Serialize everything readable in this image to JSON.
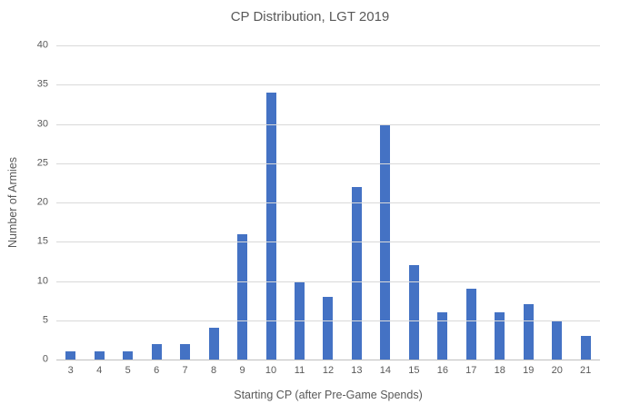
{
  "chart_data": {
    "type": "bar",
    "title": "CP Distribution, LGT 2019",
    "xlabel": "Starting CP (after Pre-Game Spends)",
    "ylabel": "Number of Armies",
    "categories": [
      "3",
      "4",
      "5",
      "6",
      "7",
      "8",
      "9",
      "10",
      "11",
      "12",
      "13",
      "14",
      "15",
      "16",
      "17",
      "18",
      "19",
      "20",
      "21"
    ],
    "values": [
      1,
      1,
      1,
      2,
      2,
      4,
      16,
      34,
      10,
      8,
      22,
      30,
      12,
      6,
      9,
      6,
      7,
      5,
      3
    ],
    "ylim": [
      0,
      40
    ],
    "ytick_step": 5,
    "grid": true,
    "legend_position": "none",
    "colors": {
      "bar": "#4472C4",
      "gridline": "#D9D9D9",
      "axis_line": "#BFBFBF",
      "text": "#595959"
    }
  }
}
